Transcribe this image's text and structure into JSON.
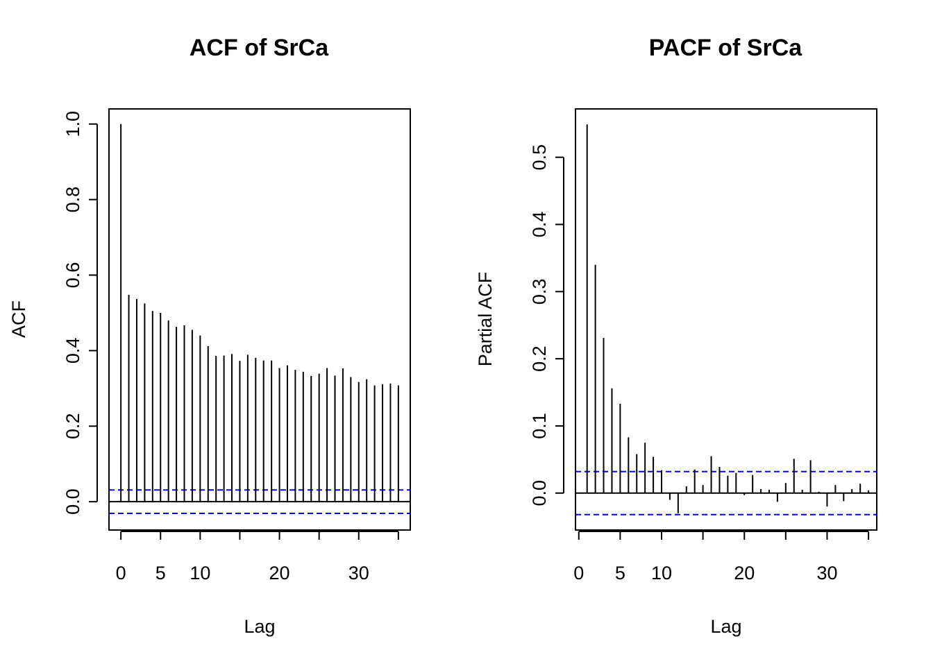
{
  "chart_data": [
    {
      "type": "bar",
      "title": "ACF of SrCa",
      "xlabel": "Lag",
      "ylabel": "ACF",
      "xlim": [
        -1.5,
        36.5
      ],
      "ylim": [
        -0.075,
        1.04
      ],
      "xticks": [
        0,
        5,
        10,
        20,
        30
      ],
      "xtick_labels": [
        "0",
        "5",
        "10",
        "20",
        "30"
      ],
      "yticks": [
        0.0,
        0.2,
        0.4,
        0.6,
        0.8,
        1.0
      ],
      "ytick_labels": [
        "0.0",
        "0.2",
        "0.4",
        "0.6",
        "0.8",
        "1.0"
      ],
      "conf_limit": 0.031,
      "conf_color": "#0000FF",
      "lags": [
        0,
        1,
        2,
        3,
        4,
        5,
        6,
        7,
        8,
        9,
        10,
        11,
        12,
        13,
        14,
        15,
        16,
        17,
        18,
        19,
        20,
        21,
        22,
        23,
        24,
        25,
        26,
        27,
        28,
        29,
        30,
        31,
        32,
        33,
        34,
        35
      ],
      "values": [
        1.0,
        0.548,
        0.537,
        0.525,
        0.505,
        0.5,
        0.48,
        0.463,
        0.467,
        0.455,
        0.44,
        0.412,
        0.386,
        0.387,
        0.391,
        0.373,
        0.389,
        0.381,
        0.374,
        0.374,
        0.354,
        0.361,
        0.349,
        0.344,
        0.333,
        0.339,
        0.354,
        0.334,
        0.353,
        0.33,
        0.317,
        0.324,
        0.308,
        0.311,
        0.313,
        0.308
      ]
    },
    {
      "type": "bar",
      "title": "PACF of SrCa",
      "xlabel": "Lag",
      "ylabel": "Partial ACF",
      "xlim": [
        -0.4,
        36
      ],
      "ylim": [
        -0.055,
        0.572
      ],
      "xticks": [
        0,
        5,
        10,
        20,
        30
      ],
      "xtick_labels": [
        "0",
        "5",
        "10",
        "20",
        "30"
      ],
      "yticks": [
        0.0,
        0.1,
        0.2,
        0.3,
        0.4,
        0.5
      ],
      "ytick_labels": [
        "0.0",
        "0.1",
        "0.2",
        "0.3",
        "0.4",
        "0.5"
      ],
      "conf_limit": 0.032,
      "conf_color": "#0000FF",
      "lags": [
        1,
        2,
        3,
        4,
        5,
        6,
        7,
        8,
        9,
        10,
        11,
        12,
        13,
        14,
        15,
        16,
        17,
        18,
        19,
        20,
        21,
        22,
        23,
        24,
        25,
        26,
        27,
        28,
        29,
        30,
        31,
        32,
        33,
        34,
        35
      ],
      "values": [
        0.549,
        0.34,
        0.231,
        0.156,
        0.133,
        0.083,
        0.058,
        0.075,
        0.054,
        0.034,
        -0.01,
        -0.03,
        0.01,
        0.035,
        0.012,
        0.055,
        0.039,
        0.026,
        0.03,
        -0.003,
        0.027,
        0.006,
        0.005,
        -0.013,
        0.015,
        0.051,
        0.005,
        0.049,
        0.002,
        -0.02,
        0.012,
        -0.012,
        0.006,
        0.014,
        0.004
      ]
    }
  ]
}
